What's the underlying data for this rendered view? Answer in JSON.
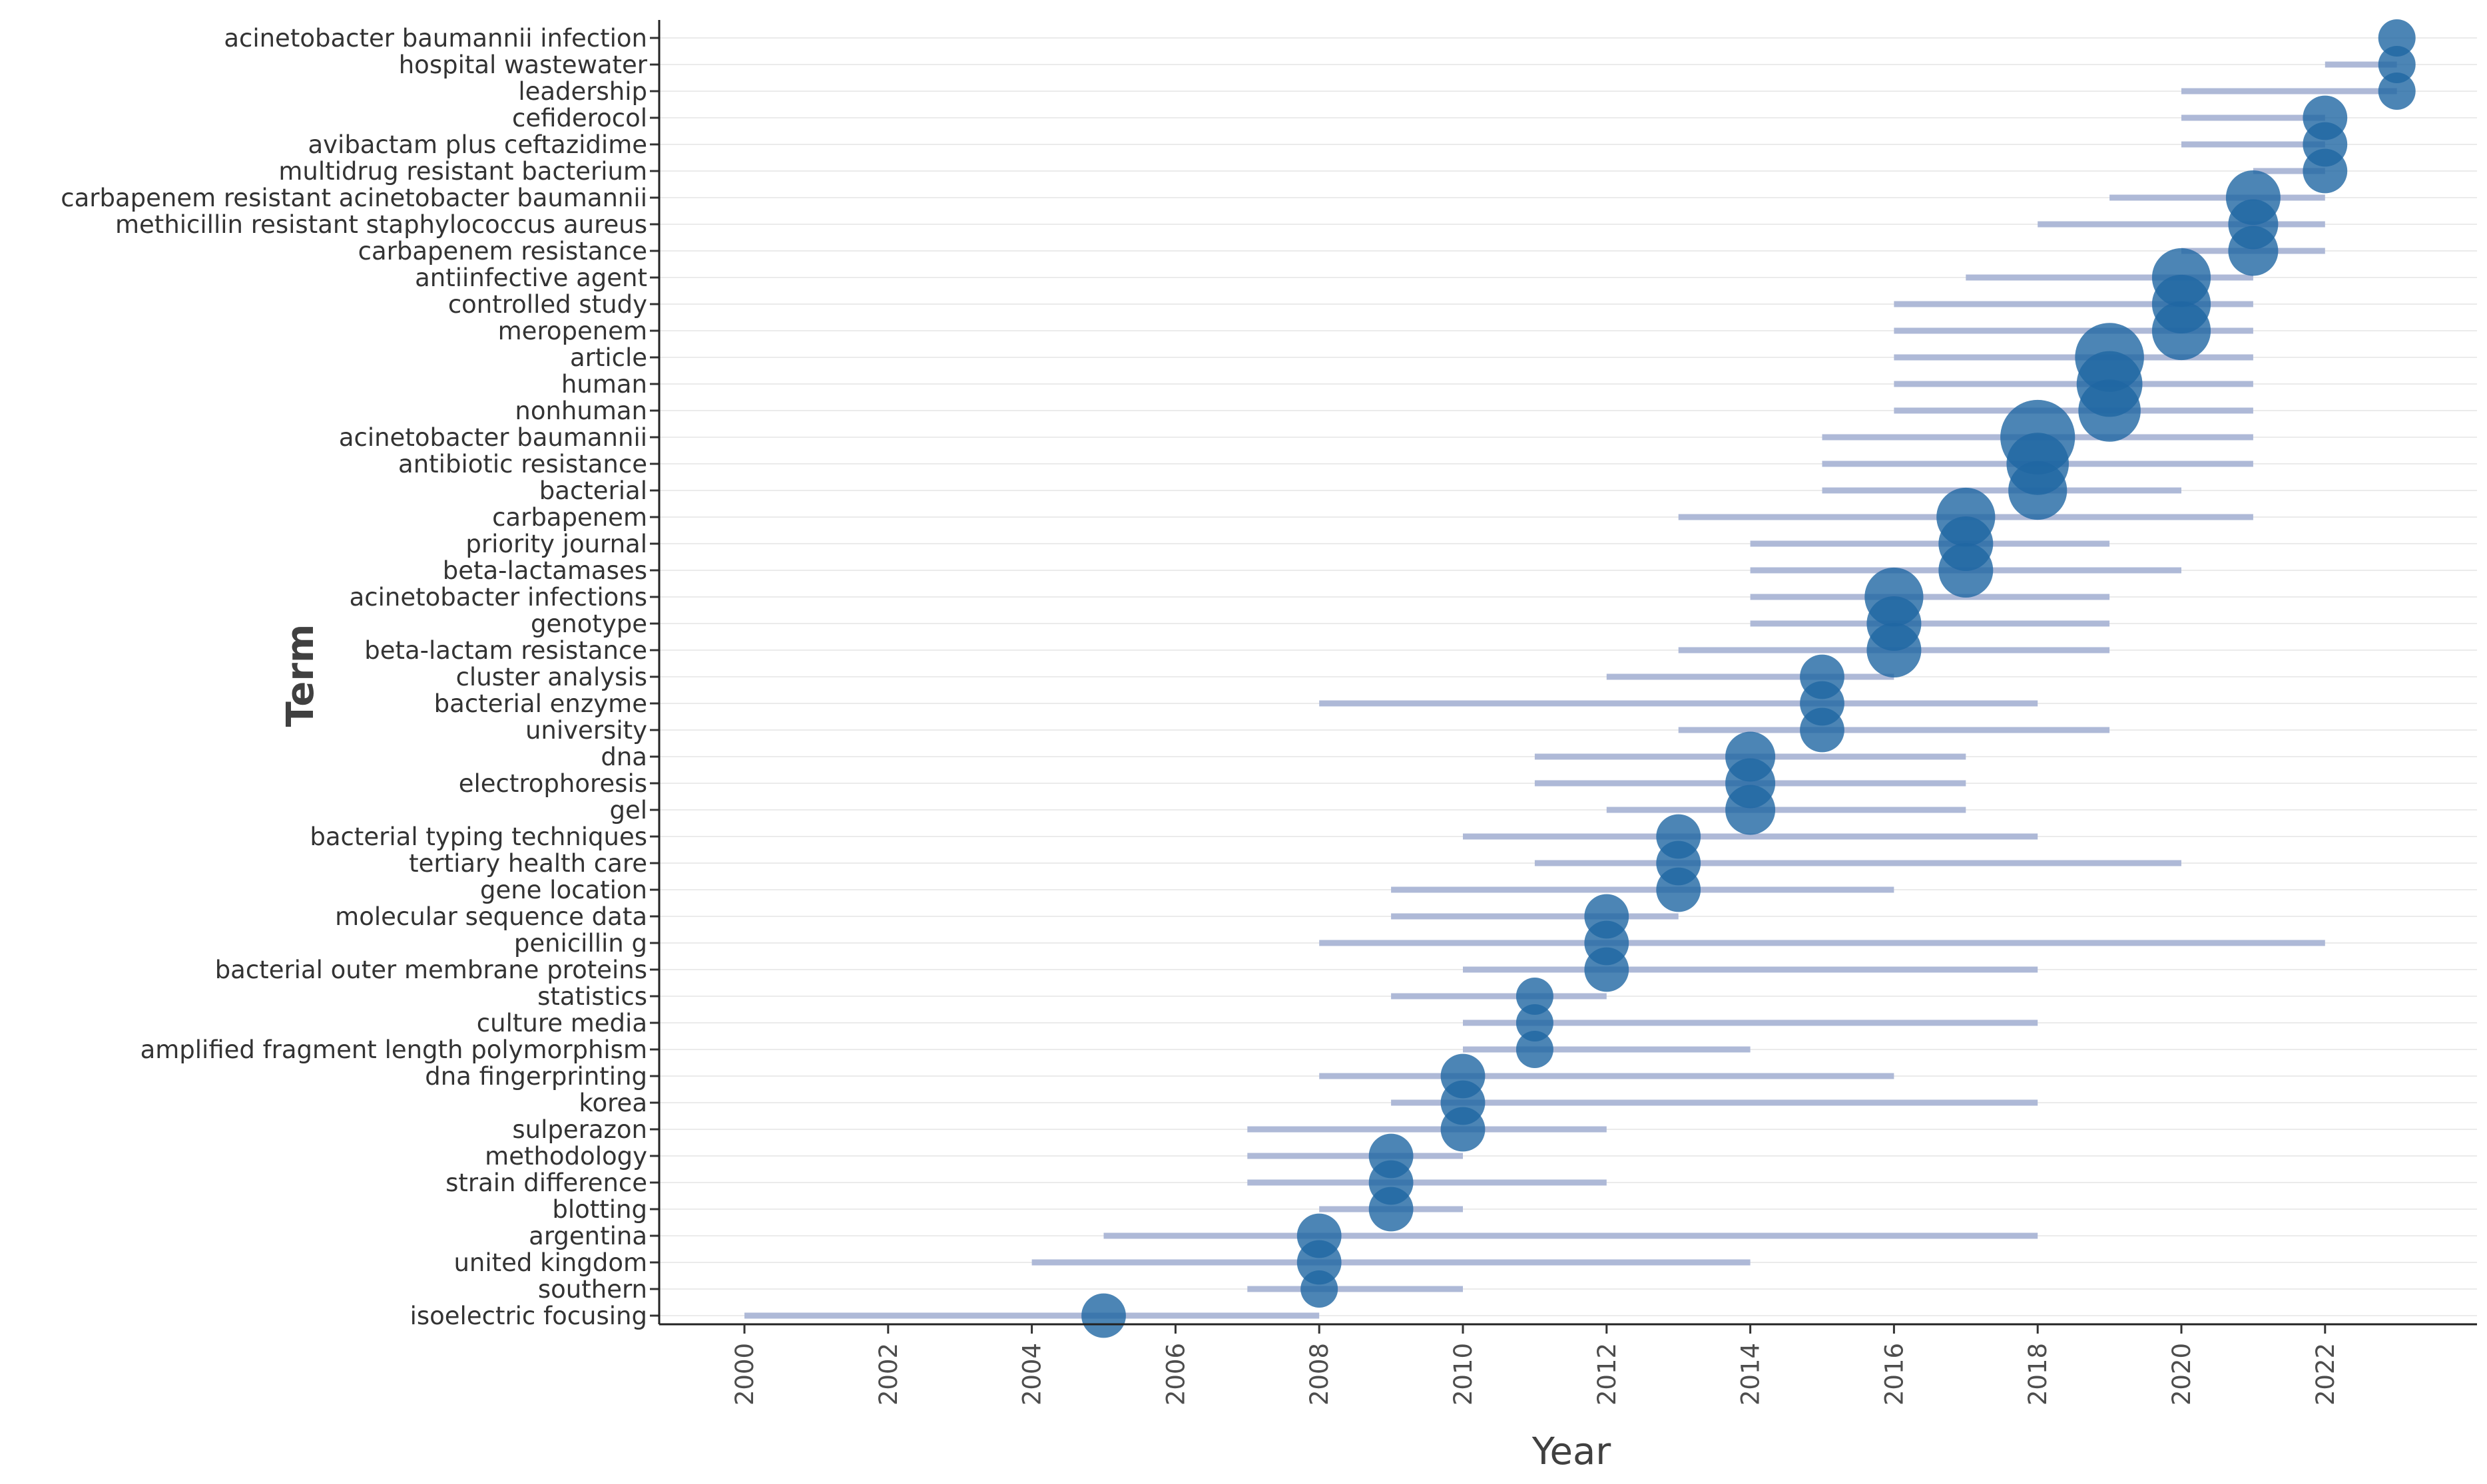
{
  "chart_data": {
    "type": "scatter",
    "title": "",
    "xlabel": "Year",
    "ylabel": "Term",
    "xlim": [
      1999,
      2024.4
    ],
    "x_ticks": [
      2000,
      2002,
      2004,
      2006,
      2008,
      2010,
      2012,
      2014,
      2016,
      2018,
      2020,
      2022
    ],
    "grid": "horizontal",
    "colors": {
      "point": "#1f66a3",
      "range": "#aeb9d7",
      "grid": "#ebebeb",
      "axis": "#222222"
    },
    "terms": [
      {
        "term": "acinetobacter baumannii infection",
        "start": 2023,
        "median": 2023,
        "end": 2023,
        "freq": 1
      },
      {
        "term": "hospital wastewater",
        "start": 2022,
        "median": 2023,
        "end": 2023,
        "freq": 1
      },
      {
        "term": "leadership",
        "start": 2020,
        "median": 2023,
        "end": 2023,
        "freq": 1
      },
      {
        "term": "cefiderocol",
        "start": 2020,
        "median": 2022,
        "end": 2022,
        "freq": 2
      },
      {
        "term": "avibactam plus ceftazidime",
        "start": 2020,
        "median": 2022,
        "end": 2022,
        "freq": 2
      },
      {
        "term": "multidrug resistant bacterium",
        "start": 2021,
        "median": 2022,
        "end": 2022,
        "freq": 2
      },
      {
        "term": "carbapenem resistant acinetobacter baumannii",
        "start": 2019,
        "median": 2021,
        "end": 2022,
        "freq": 4
      },
      {
        "term": "methicillin resistant staphylococcus aureus",
        "start": 2018,
        "median": 2021,
        "end": 2022,
        "freq": 3
      },
      {
        "term": "carbapenem resistance",
        "start": 2020,
        "median": 2021,
        "end": 2022,
        "freq": 3
      },
      {
        "term": "antiinfective agent",
        "start": 2017,
        "median": 2020,
        "end": 2021,
        "freq": 5
      },
      {
        "term": "controlled study",
        "start": 2016,
        "median": 2020,
        "end": 2021,
        "freq": 5
      },
      {
        "term": "meropenem",
        "start": 2016,
        "median": 2020,
        "end": 2021,
        "freq": 5
      },
      {
        "term": "article",
        "start": 2016,
        "median": 2019,
        "end": 2021,
        "freq": 8
      },
      {
        "term": "human",
        "start": 2016,
        "median": 2019,
        "end": 2021,
        "freq": 7
      },
      {
        "term": "nonhuman",
        "start": 2016,
        "median": 2019,
        "end": 2021,
        "freq": 6
      },
      {
        "term": "acinetobacter baumannii",
        "start": 2015,
        "median": 2018,
        "end": 2021,
        "freq": 10
      },
      {
        "term": "antibiotic resistance",
        "start": 2015,
        "median": 2018,
        "end": 2021,
        "freq": 6
      },
      {
        "term": "bacterial",
        "start": 2015,
        "median": 2018,
        "end": 2020,
        "freq": 5
      },
      {
        "term": "carbapenem",
        "start": 2013,
        "median": 2017,
        "end": 2021,
        "freq": 5
      },
      {
        "term": "priority journal",
        "start": 2014,
        "median": 2017,
        "end": 2019,
        "freq": 4
      },
      {
        "term": "beta-lactamases",
        "start": 2014,
        "median": 2017,
        "end": 2020,
        "freq": 4
      },
      {
        "term": "acinetobacter infections",
        "start": 2014,
        "median": 2016,
        "end": 2019,
        "freq": 5
      },
      {
        "term": "genotype",
        "start": 2014,
        "median": 2016,
        "end": 2019,
        "freq": 4
      },
      {
        "term": "beta-lactam resistance",
        "start": 2013,
        "median": 2016,
        "end": 2019,
        "freq": 4
      },
      {
        "term": "cluster analysis",
        "start": 2012,
        "median": 2015,
        "end": 2016,
        "freq": 2
      },
      {
        "term": "bacterial enzyme",
        "start": 2008,
        "median": 2015,
        "end": 2018,
        "freq": 2
      },
      {
        "term": "university",
        "start": 2013,
        "median": 2015,
        "end": 2019,
        "freq": 2
      },
      {
        "term": "dna",
        "start": 2011,
        "median": 2014,
        "end": 2017,
        "freq": 3
      },
      {
        "term": "electrophoresis",
        "start": 2011,
        "median": 2014,
        "end": 2017,
        "freq": 3
      },
      {
        "term": "gel",
        "start": 2012,
        "median": 2014,
        "end": 2017,
        "freq": 3
      },
      {
        "term": "bacterial typing techniques",
        "start": 2010,
        "median": 2013,
        "end": 2018,
        "freq": 2
      },
      {
        "term": "tertiary health care",
        "start": 2011,
        "median": 2013,
        "end": 2020,
        "freq": 2
      },
      {
        "term": "gene location",
        "start": 2009,
        "median": 2013,
        "end": 2016,
        "freq": 2
      },
      {
        "term": "molecular sequence data",
        "start": 2009,
        "median": 2012,
        "end": 2013,
        "freq": 2
      },
      {
        "term": "penicillin g",
        "start": 2008,
        "median": 2012,
        "end": 2022,
        "freq": 2
      },
      {
        "term": "bacterial outer membrane proteins",
        "start": 2010,
        "median": 2012,
        "end": 2018,
        "freq": 2
      },
      {
        "term": "statistics",
        "start": 2009,
        "median": 2011,
        "end": 2012,
        "freq": 1
      },
      {
        "term": "culture media",
        "start": 2010,
        "median": 2011,
        "end": 2018,
        "freq": 1
      },
      {
        "term": "amplified fragment length polymorphism",
        "start": 2010,
        "median": 2011,
        "end": 2014,
        "freq": 1
      },
      {
        "term": "dna fingerprinting",
        "start": 2008,
        "median": 2010,
        "end": 2016,
        "freq": 2
      },
      {
        "term": "korea",
        "start": 2009,
        "median": 2010,
        "end": 2018,
        "freq": 2
      },
      {
        "term": "sulperazon",
        "start": 2007,
        "median": 2010,
        "end": 2012,
        "freq": 2
      },
      {
        "term": "methodology",
        "start": 2007,
        "median": 2009,
        "end": 2010,
        "freq": 2
      },
      {
        "term": "strain difference",
        "start": 2007,
        "median": 2009,
        "end": 2012,
        "freq": 2
      },
      {
        "term": "blotting",
        "start": 2008,
        "median": 2009,
        "end": 2010,
        "freq": 2
      },
      {
        "term": "argentina",
        "start": 2005,
        "median": 2008,
        "end": 2018,
        "freq": 2
      },
      {
        "term": "united kingdom",
        "start": 2004,
        "median": 2008,
        "end": 2014,
        "freq": 2
      },
      {
        "term": "southern",
        "start": 2007,
        "median": 2008,
        "end": 2010,
        "freq": 1
      },
      {
        "term": "isoelectric focusing",
        "start": 2000,
        "median": 2005,
        "end": 2008,
        "freq": 2
      }
    ]
  }
}
